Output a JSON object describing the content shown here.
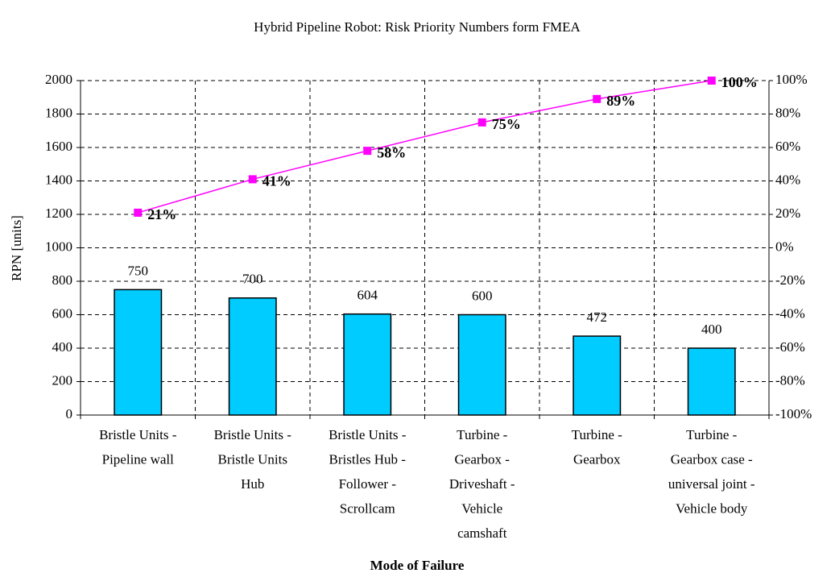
{
  "chart_data": {
    "type": "bar",
    "title": "Hybrid Pipeline Robot: Risk Priority Numbers form FMEA",
    "y_label": "RPN [units]",
    "x_label": "Mode of Failure",
    "categories": [
      [
        "Bristle Units -",
        "Pipeline wall"
      ],
      [
        "Bristle Units -",
        "Bristle Units",
        "Hub"
      ],
      [
        "Bristle Units -",
        "Bristles Hub -",
        "Follower -",
        "Scrollcam"
      ],
      [
        "Turbine -",
        "Gearbox -",
        "Driveshaft -",
        "Vehicle",
        "camshaft"
      ],
      [
        "Turbine -",
        "Gearbox"
      ],
      [
        "Turbine -",
        "Gearbox case -",
        "universal joint -",
        "Vehicle body"
      ]
    ],
    "series": [
      {
        "type": "bar",
        "color": "#00ccff",
        "values": [
          750,
          700,
          604,
          600,
          472,
          400
        ]
      },
      {
        "type": "line",
        "axis": "y2",
        "color": "#ff00ff",
        "values": [
          21,
          41,
          58,
          75,
          89,
          100
        ],
        "value_labels": [
          "21%",
          "41%",
          "58%",
          "75%",
          "89%",
          "100%"
        ]
      }
    ],
    "ylim": [
      0,
      2000
    ],
    "yticks": [
      0,
      200,
      400,
      600,
      800,
      1000,
      1200,
      1400,
      1600,
      1800,
      2000
    ],
    "y2lim": [
      -100,
      100
    ],
    "y2ticks": [
      {
        "value": -100,
        "label": "-100%"
      },
      {
        "value": -80,
        "label": "-80%"
      },
      {
        "value": -60,
        "label": "-60%"
      },
      {
        "value": -40,
        "label": "-40%"
      },
      {
        "value": -20,
        "label": "-20%"
      },
      {
        "value": 0,
        "label": "0%"
      },
      {
        "value": 20,
        "label": "20%"
      },
      {
        "value": 40,
        "label": "40%"
      },
      {
        "value": 60,
        "label": "60%"
      },
      {
        "value": 80,
        "label": "80%"
      },
      {
        "value": 100,
        "label": "100%"
      }
    ],
    "grid": true
  }
}
